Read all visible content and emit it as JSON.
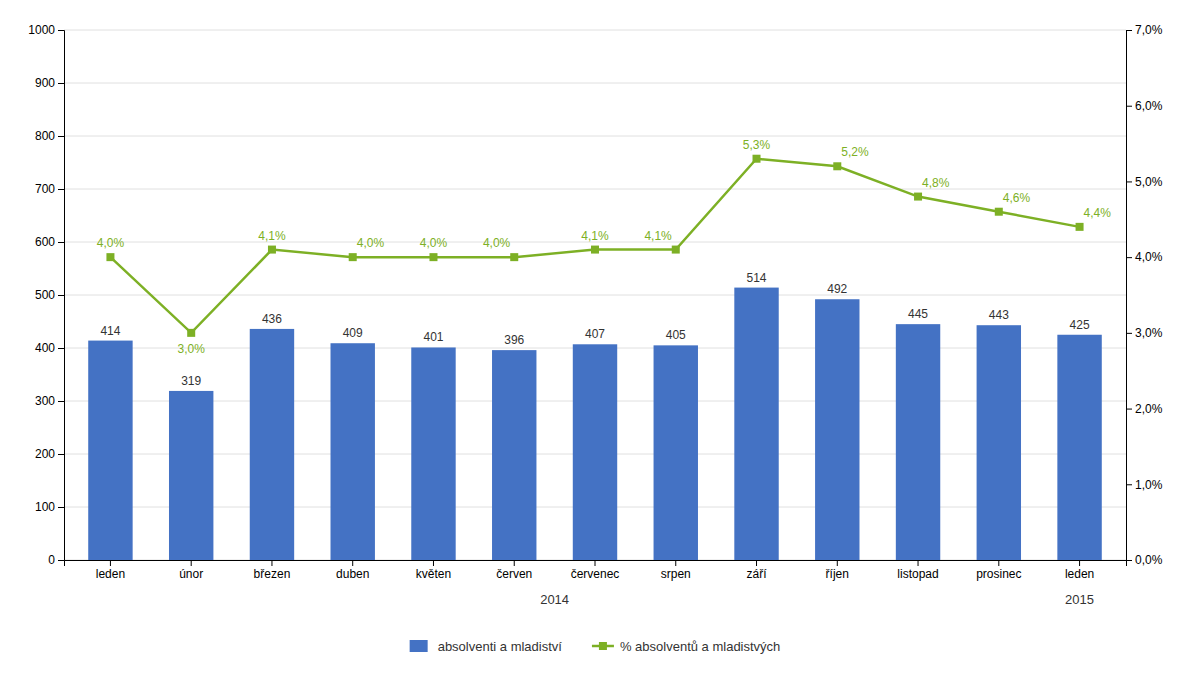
{
  "chart_data": {
    "type": "bar",
    "categories": [
      "leden",
      "únor",
      "březen",
      "duben",
      "květen",
      "červen",
      "červenec",
      "srpen",
      "září",
      "říjen",
      "listopad",
      "prosinec",
      "leden"
    ],
    "series": [
      {
        "name": "absolventi a mladiství",
        "type": "bar",
        "color": "#4472C4",
        "values": [
          414,
          319,
          436,
          409,
          401,
          396,
          407,
          405,
          514,
          492,
          445,
          443,
          425
        ]
      },
      {
        "name": "% absolventů a mladistvých",
        "type": "line",
        "axis": "y2",
        "color": "#7DB025",
        "marker": "square",
        "values": [
          4.0,
          3.0,
          4.1,
          4.0,
          4.0,
          4.0,
          4.1,
          4.1,
          5.3,
          5.2,
          4.8,
          4.6,
          4.4
        ],
        "value_labels": [
          "4,0%",
          "3,0%",
          "4,1%",
          "4,0%",
          "4,0%",
          "4,0%",
          "4,1%",
          "4,1%",
          "5,3%",
          "5,2%",
          "4,8%",
          "4,6%",
          "4,4%"
        ]
      }
    ],
    "ylim": [
      0,
      1000
    ],
    "yticks": [
      0,
      100,
      200,
      300,
      400,
      500,
      600,
      700,
      800,
      900,
      1000
    ],
    "y2lim": [
      0.0,
      7.0
    ],
    "y2ticks": [
      {
        "value": 0.0,
        "label": "0,0%"
      },
      {
        "value": 1.0,
        "label": "1,0%"
      },
      {
        "value": 2.0,
        "label": "2,0%"
      },
      {
        "value": 3.0,
        "label": "3,0%"
      },
      {
        "value": 4.0,
        "label": "4,0%"
      },
      {
        "value": 5.0,
        "label": "5,0%"
      },
      {
        "value": 6.0,
        "label": "6,0%"
      },
      {
        "value": 7.0,
        "label": "7,0%"
      }
    ],
    "annotations": [
      {
        "text": "2014",
        "x": 5.5
      },
      {
        "text": "2015",
        "x": 12
      }
    ],
    "grid": true,
    "data_labels": true,
    "legend": "bottom"
  }
}
